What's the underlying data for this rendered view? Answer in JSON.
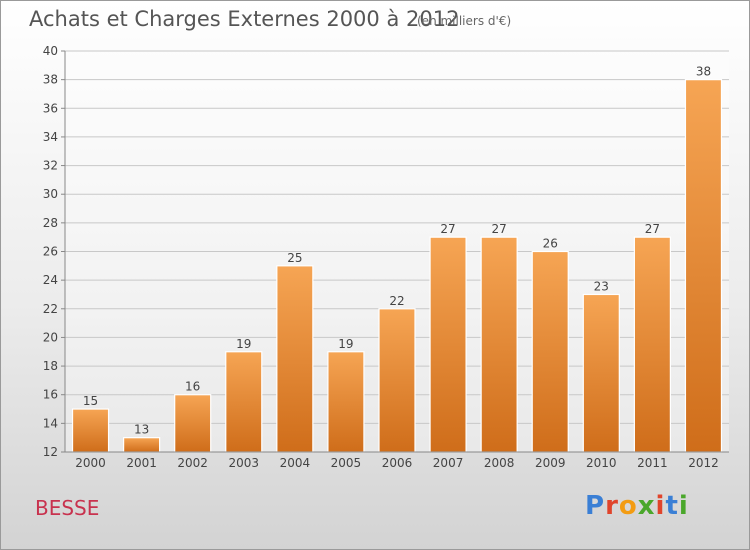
{
  "header": {
    "title": "Achats et Charges Externes 2000 à 2012",
    "subtitle": "(en milliers d'€)"
  },
  "commune": "BESSE",
  "logo": {
    "text": "Proxiti",
    "letter_colors": [
      "#3a7fd5",
      "#e0442b",
      "#f39c12",
      "#4aa72b",
      "#e0442b",
      "#3a7fd5",
      "#4aa72b"
    ]
  },
  "chart_data": {
    "type": "bar",
    "categories": [
      "2000",
      "2001",
      "2002",
      "2003",
      "2004",
      "2005",
      "2006",
      "2007",
      "2008",
      "2009",
      "2010",
      "2011",
      "2012"
    ],
    "values": [
      15,
      13,
      16,
      19,
      25,
      19,
      22,
      27,
      27,
      26,
      23,
      27,
      38
    ],
    "ylim": [
      12,
      40
    ],
    "yticks": [
      12,
      14,
      16,
      18,
      20,
      22,
      24,
      26,
      28,
      30,
      32,
      34,
      36,
      38,
      40
    ],
    "grid": true,
    "bar_color_top": "#f6a554",
    "bar_color_bottom": "#cf6d1a"
  }
}
